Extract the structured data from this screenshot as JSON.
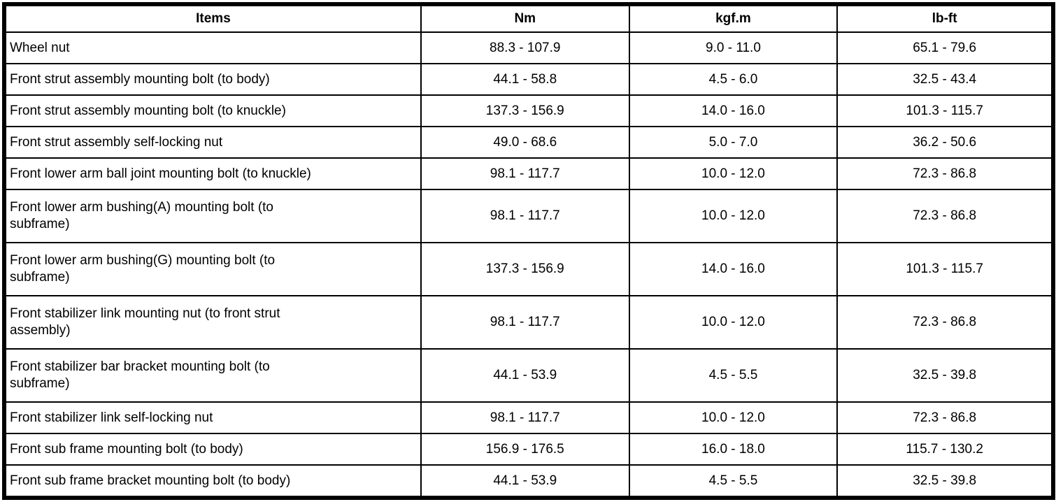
{
  "page": {
    "background_color": "#ffffff",
    "border_color": "#000000",
    "text_color": "#000000"
  },
  "table": {
    "name": "front-suspension-tightening-torques",
    "columns": {
      "items": "Items",
      "nm": "Nm",
      "kgf_m": "kgf.m",
      "lb_ft": "lb-ft"
    },
    "rows": [
      {
        "item": "Wheel nut",
        "nm": "88.3 - 107.9",
        "kgf_m": "9.0 - 11.0",
        "lb_ft": "65.1 - 79.6"
      },
      {
        "item": "Front strut assembly mounting bolt (to body)",
        "nm": "44.1 - 58.8",
        "kgf_m": "4.5 - 6.0",
        "lb_ft": "32.5 - 43.4"
      },
      {
        "item": "Front strut assembly mounting bolt (to knuckle)",
        "nm": "137.3 - 156.9",
        "kgf_m": "14.0 - 16.0",
        "lb_ft": "101.3 - 115.7"
      },
      {
        "item": "Front strut assembly self-locking nut",
        "nm": "49.0 - 68.6",
        "kgf_m": "5.0 - 7.0",
        "lb_ft": "36.2 - 50.6"
      },
      {
        "item": "Front lower arm ball joint mounting bolt (to knuckle)",
        "nm": "98.1 - 117.7",
        "kgf_m": "10.0 - 12.0",
        "lb_ft": "72.3 - 86.8"
      },
      {
        "item": "Front lower arm bushing(A) mounting bolt (to\nsubframe)",
        "nm": "98.1 - 117.7",
        "kgf_m": "10.0 - 12.0",
        "lb_ft": "72.3 - 86.8"
      },
      {
        "item": "Front lower arm bushing(G) mounting bolt (to\nsubframe)",
        "nm": "137.3 - 156.9",
        "kgf_m": "14.0 - 16.0",
        "lb_ft": "101.3 - 115.7"
      },
      {
        "item": "Front stabilizer link mounting nut (to front strut\nassembly)",
        "nm": "98.1 - 117.7",
        "kgf_m": "10.0 - 12.0",
        "lb_ft": "72.3 - 86.8"
      },
      {
        "item": "Front stabilizer bar bracket mounting bolt (to\nsubframe)",
        "nm": "44.1 - 53.9",
        "kgf_m": "4.5 - 5.5",
        "lb_ft": "32.5 - 39.8"
      },
      {
        "item": "Front stabilizer link self-locking nut",
        "nm": "98.1 - 117.7",
        "kgf_m": "10.0 - 12.0",
        "lb_ft": "72.3 - 86.8"
      },
      {
        "item": "Front sub frame mounting bolt (to body)",
        "nm": "156.9 - 176.5",
        "kgf_m": "16.0 - 18.0",
        "lb_ft": "115.7 - 130.2"
      },
      {
        "item": "Front sub frame bracket mounting bolt (to body)",
        "nm": "44.1 - 53.9",
        "kgf_m": "4.5 - 5.5",
        "lb_ft": "32.5 - 39.8"
      }
    ]
  }
}
